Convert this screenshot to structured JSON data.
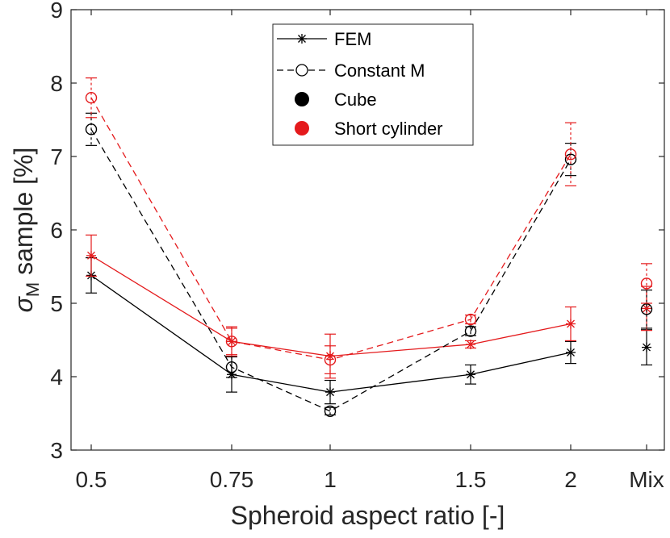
{
  "chart_data": {
    "type": "line",
    "title": "",
    "xlabel": "Spheroid aspect ratio [-]",
    "ylabel_main": "σ",
    "ylabel_sub": "M",
    "ylabel_rest": " sample [%]",
    "categories": [
      "0.5",
      "0.75",
      "1",
      "1.5",
      "2",
      "Mix"
    ],
    "ylim": [
      3,
      9
    ],
    "yticks": [
      "3",
      "4",
      "5",
      "6",
      "7",
      "8",
      "9"
    ],
    "grid": false,
    "legend_position": "top-center",
    "legend": [
      {
        "label": "FEM",
        "style": "solid-star"
      },
      {
        "label": "Constant M",
        "style": "dashed-circle"
      },
      {
        "label": "Cube",
        "style": "black-dot"
      },
      {
        "label": "Short cylinder",
        "style": "red-dot"
      }
    ],
    "series": [
      {
        "name": "FEM - Cube",
        "color": "#000000",
        "dash": "solid",
        "marker": "star",
        "values": [
          5.38,
          4.03,
          3.79,
          4.03,
          4.33,
          4.4
        ],
        "errors": [
          0.24,
          0.24,
          0.16,
          0.13,
          0.15,
          0.24
        ]
      },
      {
        "name": "FEM - Short cylinder",
        "color": "#e41a1c",
        "dash": "solid",
        "marker": "star",
        "values": [
          5.65,
          4.48,
          4.28,
          4.44,
          4.72,
          4.93
        ],
        "errors": [
          0.28,
          0.2,
          0.3,
          0.05,
          0.23,
          0.3
        ]
      },
      {
        "name": "Constant M - Cube",
        "color": "#000000",
        "dash": "dashed",
        "marker": "circle",
        "values": [
          7.37,
          4.13,
          3.53,
          4.62,
          6.96,
          4.92
        ],
        "errors": [
          0.22,
          0.14,
          0.05,
          0.06,
          0.22,
          0.26
        ]
      },
      {
        "name": "Constant M - Short cylinder",
        "color": "#e41a1c",
        "dash": "dashed",
        "marker": "circle",
        "values": [
          7.8,
          4.48,
          4.23,
          4.78,
          7.03,
          5.27
        ],
        "errors": [
          0.27,
          0.18,
          0.19,
          0.06,
          0.43,
          0.27
        ]
      }
    ]
  }
}
